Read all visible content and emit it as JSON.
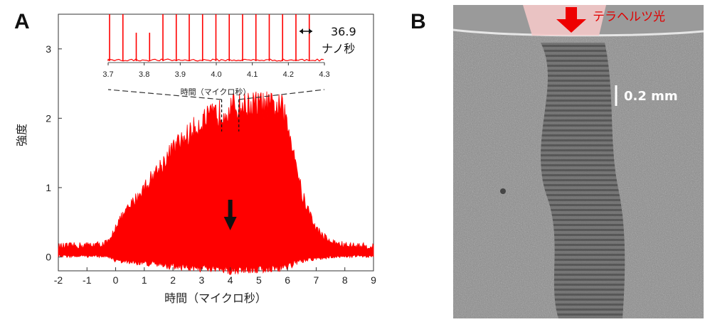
{
  "panels": {
    "a_label": "A",
    "b_label": "B"
  },
  "chart_data": [
    {
      "type": "area",
      "panel": "A",
      "xlabel": "時間（マイクロ秒）",
      "ylabel": "強度",
      "xlim": [
        -2,
        9
      ],
      "ylim": [
        -0.2,
        3.5
      ],
      "x_ticks": [
        "-2",
        "-1",
        "0",
        "1",
        "2",
        "3",
        "4",
        "5",
        "6",
        "7",
        "8",
        "9"
      ],
      "y_ticks": [
        "0",
        "1",
        "2",
        "3"
      ],
      "color": "#ff0000",
      "envelope": {
        "x": [
          -2,
          -0.5,
          -0.2,
          0,
          1,
          2,
          3,
          4,
          5,
          5.8,
          6.2,
          6.5,
          7,
          7.5,
          8,
          9
        ],
        "upper": [
          0.15,
          0.18,
          0.22,
          0.45,
          1.0,
          1.55,
          1.95,
          2.15,
          2.2,
          2.15,
          1.6,
          0.9,
          0.4,
          0.22,
          0.17,
          0.15
        ],
        "lower": [
          0.03,
          0.03,
          0.02,
          -0.03,
          -0.05,
          -0.08,
          -0.1,
          -0.12,
          -0.1,
          -0.08,
          -0.05,
          -0.02,
          0.0,
          0.02,
          0.03,
          0.03
        ]
      },
      "markers": {
        "dashed_x": [
          3.7,
          4.3
        ],
        "arrow_x": 4.0
      }
    },
    {
      "type": "line",
      "panel": "A-inset",
      "xlabel": "時間（マイクロ秒）",
      "xlim": [
        3.7,
        4.3
      ],
      "x_ticks": [
        "3.7",
        "3.8",
        "3.9",
        "4.0",
        "4.1",
        "4.2",
        "4.3"
      ],
      "color": "#ff0000",
      "pulse_period_ns": 36.9,
      "pulse_x": [
        3.704,
        3.741,
        3.778,
        3.815,
        3.852,
        3.889,
        3.925,
        3.962,
        3.999,
        4.036,
        4.073,
        4.11,
        4.147,
        4.184,
        4.221,
        4.258
      ],
      "annotation_value": "36.9",
      "annotation_unit": "ナノ秒"
    }
  ],
  "image_b": {
    "label": "テラヘルツ光",
    "scale_bar": "0.2 mm"
  }
}
